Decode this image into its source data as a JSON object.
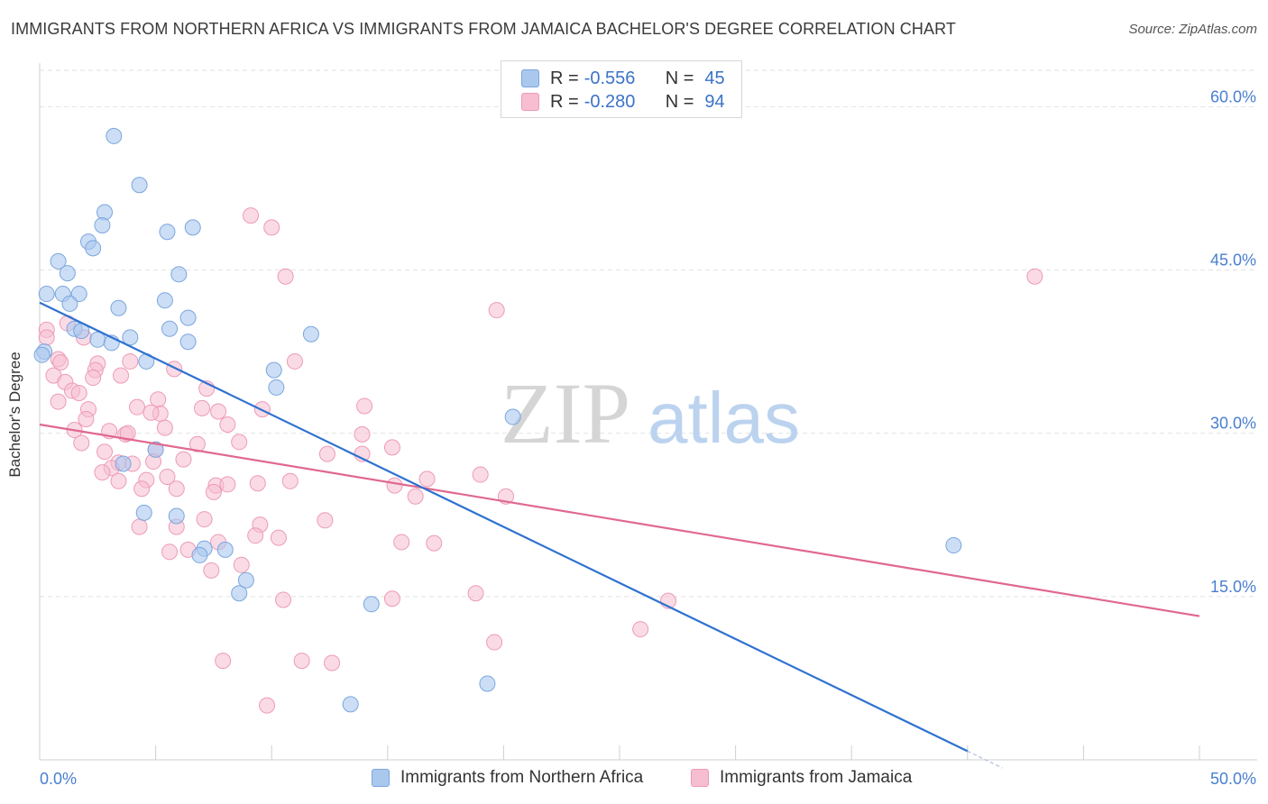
{
  "header": {
    "title": "IMMIGRANTS FROM NORTHERN AFRICA VS IMMIGRANTS FROM JAMAICA BACHELOR'S DEGREE CORRELATION CHART",
    "source": "Source: ZipAtlas.com"
  },
  "watermark": {
    "part1": "ZIP",
    "part2": "atlas"
  },
  "legend": {
    "rows": [
      {
        "r_label": "R =",
        "r_value": "-0.556",
        "n_label": "N =",
        "n_value": "45"
      },
      {
        "r_label": "R =",
        "r_value": "-0.280",
        "n_label": "N =",
        "n_value": "94"
      }
    ]
  },
  "bottom_legend": {
    "series1": "Immigrants from Northern Africa",
    "series2": "Immigrants from Jamaica"
  },
  "colors": {
    "blue_fill": "#aac8ee",
    "blue_stroke": "#7aa6de",
    "blue_line": "#2f72d0",
    "pink_fill": "#f6bed0",
    "pink_stroke": "#ee9ab6",
    "pink_line": "#e06890",
    "axis_text": "#4a7fd0",
    "grid": "#e2e2e2"
  },
  "chart_data": {
    "type": "scatter",
    "title": "IMMIGRANTS FROM NORTHERN AFRICA VS IMMIGRANTS FROM JAMAICA BACHELOR'S DEGREE CORRELATION CHART",
    "xlabel": "",
    "ylabel": "Bachelor's Degree",
    "xlim": [
      0,
      50
    ],
    "ylim": [
      0,
      64
    ],
    "x_tick_labels": [
      "0.0%",
      "50.0%"
    ],
    "y_ticks": [
      15,
      30,
      45,
      60
    ],
    "y_tick_labels": [
      "15.0%",
      "30.0%",
      "45.0%",
      "60.0%"
    ],
    "grid": true,
    "legend_position": "top-center",
    "series": [
      {
        "name": "Immigrants from Northern Africa",
        "color": "#aac8ee",
        "points": [
          [
            3.2,
            57.3
          ],
          [
            4.3,
            52.8
          ],
          [
            2.8,
            50.3
          ],
          [
            2.7,
            49.1
          ],
          [
            5.5,
            48.5
          ],
          [
            6.6,
            48.9
          ],
          [
            2.1,
            47.6
          ],
          [
            2.3,
            47.0
          ],
          [
            0.8,
            45.8
          ],
          [
            1.2,
            44.7
          ],
          [
            6.0,
            44.6
          ],
          [
            0.3,
            42.8
          ],
          [
            1.0,
            42.8
          ],
          [
            1.7,
            42.8
          ],
          [
            5.4,
            42.2
          ],
          [
            1.3,
            41.9
          ],
          [
            3.4,
            41.5
          ],
          [
            6.4,
            40.6
          ],
          [
            1.5,
            39.6
          ],
          [
            1.8,
            39.4
          ],
          [
            5.6,
            39.6
          ],
          [
            3.9,
            38.8
          ],
          [
            2.5,
            38.6
          ],
          [
            3.1,
            38.3
          ],
          [
            6.4,
            38.4
          ],
          [
            11.7,
            39.1
          ],
          [
            0.2,
            37.5
          ],
          [
            4.6,
            36.6
          ],
          [
            10.1,
            35.8
          ],
          [
            10.2,
            34.2
          ],
          [
            20.4,
            31.5
          ],
          [
            5.0,
            28.5
          ],
          [
            3.6,
            27.2
          ],
          [
            4.5,
            22.7
          ],
          [
            5.9,
            22.4
          ],
          [
            7.1,
            19.4
          ],
          [
            8.0,
            19.3
          ],
          [
            6.9,
            18.8
          ],
          [
            8.9,
            16.5
          ],
          [
            8.6,
            15.3
          ],
          [
            14.3,
            14.3
          ],
          [
            39.4,
            19.7
          ],
          [
            19.3,
            7.0
          ],
          [
            13.4,
            5.1
          ],
          [
            0.1,
            37.2
          ]
        ]
      },
      {
        "name": "Immigrants from Jamaica",
        "color": "#f6bed0",
        "points": [
          [
            9.1,
            50.0
          ],
          [
            10.0,
            48.9
          ],
          [
            10.6,
            44.4
          ],
          [
            42.9,
            44.4
          ],
          [
            19.7,
            41.3
          ],
          [
            1.2,
            40.1
          ],
          [
            0.3,
            39.5
          ],
          [
            0.3,
            38.8
          ],
          [
            1.9,
            38.8
          ],
          [
            0.8,
            36.8
          ],
          [
            0.9,
            36.5
          ],
          [
            2.5,
            36.4
          ],
          [
            3.9,
            36.6
          ],
          [
            11.0,
            36.6
          ],
          [
            2.4,
            35.8
          ],
          [
            5.8,
            35.9
          ],
          [
            0.6,
            35.3
          ],
          [
            2.3,
            35.1
          ],
          [
            3.5,
            35.3
          ],
          [
            1.1,
            34.7
          ],
          [
            1.4,
            33.9
          ],
          [
            1.7,
            33.7
          ],
          [
            7.2,
            34.1
          ],
          [
            0.8,
            32.9
          ],
          [
            5.1,
            33.1
          ],
          [
            4.2,
            32.4
          ],
          [
            7.0,
            32.3
          ],
          [
            14.0,
            32.5
          ],
          [
            9.6,
            32.2
          ],
          [
            2.1,
            32.2
          ],
          [
            5.2,
            31.8
          ],
          [
            7.7,
            32.0
          ],
          [
            2.0,
            31.3
          ],
          [
            8.1,
            30.8
          ],
          [
            1.5,
            30.3
          ],
          [
            5.4,
            30.5
          ],
          [
            3.0,
            30.2
          ],
          [
            3.7,
            29.9
          ],
          [
            3.8,
            30.0
          ],
          [
            13.9,
            29.9
          ],
          [
            1.8,
            29.1
          ],
          [
            8.6,
            29.2
          ],
          [
            6.8,
            29.0
          ],
          [
            15.2,
            28.7
          ],
          [
            5.0,
            28.5
          ],
          [
            2.8,
            28.3
          ],
          [
            12.4,
            28.1
          ],
          [
            13.9,
            28.1
          ],
          [
            6.2,
            27.6
          ],
          [
            4.9,
            27.4
          ],
          [
            3.4,
            27.3
          ],
          [
            3.1,
            26.8
          ],
          [
            4.0,
            27.2
          ],
          [
            2.7,
            26.4
          ],
          [
            19.0,
            26.2
          ],
          [
            16.7,
            25.8
          ],
          [
            5.5,
            26.0
          ],
          [
            10.8,
            25.6
          ],
          [
            9.4,
            25.4
          ],
          [
            3.4,
            25.6
          ],
          [
            4.6,
            25.7
          ],
          [
            7.6,
            25.2
          ],
          [
            15.3,
            25.2
          ],
          [
            8.1,
            25.3
          ],
          [
            4.4,
            24.9
          ],
          [
            5.9,
            24.9
          ],
          [
            7.5,
            24.6
          ],
          [
            20.1,
            24.2
          ],
          [
            16.2,
            24.2
          ],
          [
            12.3,
            22.0
          ],
          [
            7.1,
            22.1
          ],
          [
            9.5,
            21.6
          ],
          [
            4.3,
            21.4
          ],
          [
            5.9,
            21.4
          ],
          [
            9.3,
            20.6
          ],
          [
            10.3,
            20.4
          ],
          [
            7.7,
            20.0
          ],
          [
            15.6,
            20.0
          ],
          [
            17.0,
            19.9
          ],
          [
            6.4,
            19.3
          ],
          [
            5.6,
            19.1
          ],
          [
            8.7,
            17.9
          ],
          [
            7.4,
            17.4
          ],
          [
            10.5,
            14.7
          ],
          [
            15.2,
            14.8
          ],
          [
            18.8,
            15.3
          ],
          [
            27.1,
            14.6
          ],
          [
            25.9,
            12.0
          ],
          [
            19.6,
            10.8
          ],
          [
            7.9,
            9.1
          ],
          [
            11.3,
            9.1
          ],
          [
            12.6,
            8.9
          ],
          [
            9.8,
            5.0
          ],
          [
            4.8,
            31.9
          ]
        ]
      }
    ],
    "trend_lines": [
      {
        "series": "Immigrants from Northern Africa",
        "x": [
          0,
          40
        ],
        "y": [
          42.0,
          0.8
        ],
        "dashed_extension_x": [
          40,
          41.5
        ]
      },
      {
        "series": "Immigrants from Jamaica",
        "x": [
          0,
          50
        ],
        "y": [
          30.8,
          13.2
        ]
      }
    ]
  }
}
